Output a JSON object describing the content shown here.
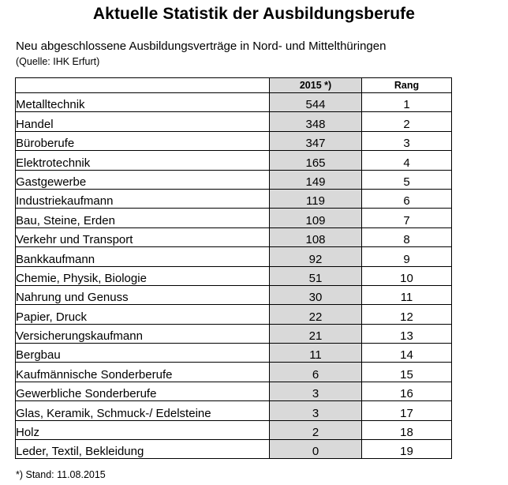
{
  "title": "Aktuelle Statistik der Ausbildungsberufe",
  "subtitle": "Neu abgeschlossene Ausbildungsverträge in Nord- und Mittelthüringen",
  "source": "(Quelle: IHK Erfurt)",
  "table": {
    "headers": [
      "",
      "2015 *)",
      "Rang"
    ],
    "rows": [
      {
        "beruf": "Metalltechnik",
        "wert": "544",
        "rang": "1"
      },
      {
        "beruf": "Handel",
        "wert": "348",
        "rang": "2"
      },
      {
        "beruf": "Büroberufe",
        "wert": "347",
        "rang": "3"
      },
      {
        "beruf": "Elektrotechnik",
        "wert": "165",
        "rang": "4"
      },
      {
        "beruf": "Gastgewerbe",
        "wert": "149",
        "rang": "5"
      },
      {
        "beruf": "Industriekaufmann",
        "wert": "119",
        "rang": "6"
      },
      {
        "beruf": "Bau, Steine, Erden",
        "wert": "109",
        "rang": "7"
      },
      {
        "beruf": "Verkehr und Transport",
        "wert": "108",
        "rang": "8"
      },
      {
        "beruf": "Bankkaufmann",
        "wert": "92",
        "rang": "9"
      },
      {
        "beruf": "Chemie, Physik, Biologie",
        "wert": "51",
        "rang": "10"
      },
      {
        "beruf": "Nahrung und Genuss",
        "wert": "30",
        "rang": "11"
      },
      {
        "beruf": "Papier, Druck",
        "wert": "22",
        "rang": "12"
      },
      {
        "beruf": "Versicherungskaufmann",
        "wert": "21",
        "rang": "13"
      },
      {
        "beruf": "Bergbau",
        "wert": "11",
        "rang": "14"
      },
      {
        "beruf": "Kaufmännische Sonderberufe",
        "wert": "6",
        "rang": "15"
      },
      {
        "beruf": "Gewerbliche Sonderberufe",
        "wert": "3",
        "rang": "16"
      },
      {
        "beruf": "Glas, Keramik, Schmuck-/ Edelsteine",
        "wert": "3",
        "rang": "17"
      },
      {
        "beruf": "Holz",
        "wert": "2",
        "rang": "18"
      },
      {
        "beruf": "Leder, Textil, Bekleidung",
        "wert": "0",
        "rang": "19"
      }
    ]
  },
  "footnote": "*) Stand: 11.08.2015",
  "colors": {
    "value_column_shade": "#d9d9d9",
    "border": "#000000"
  }
}
